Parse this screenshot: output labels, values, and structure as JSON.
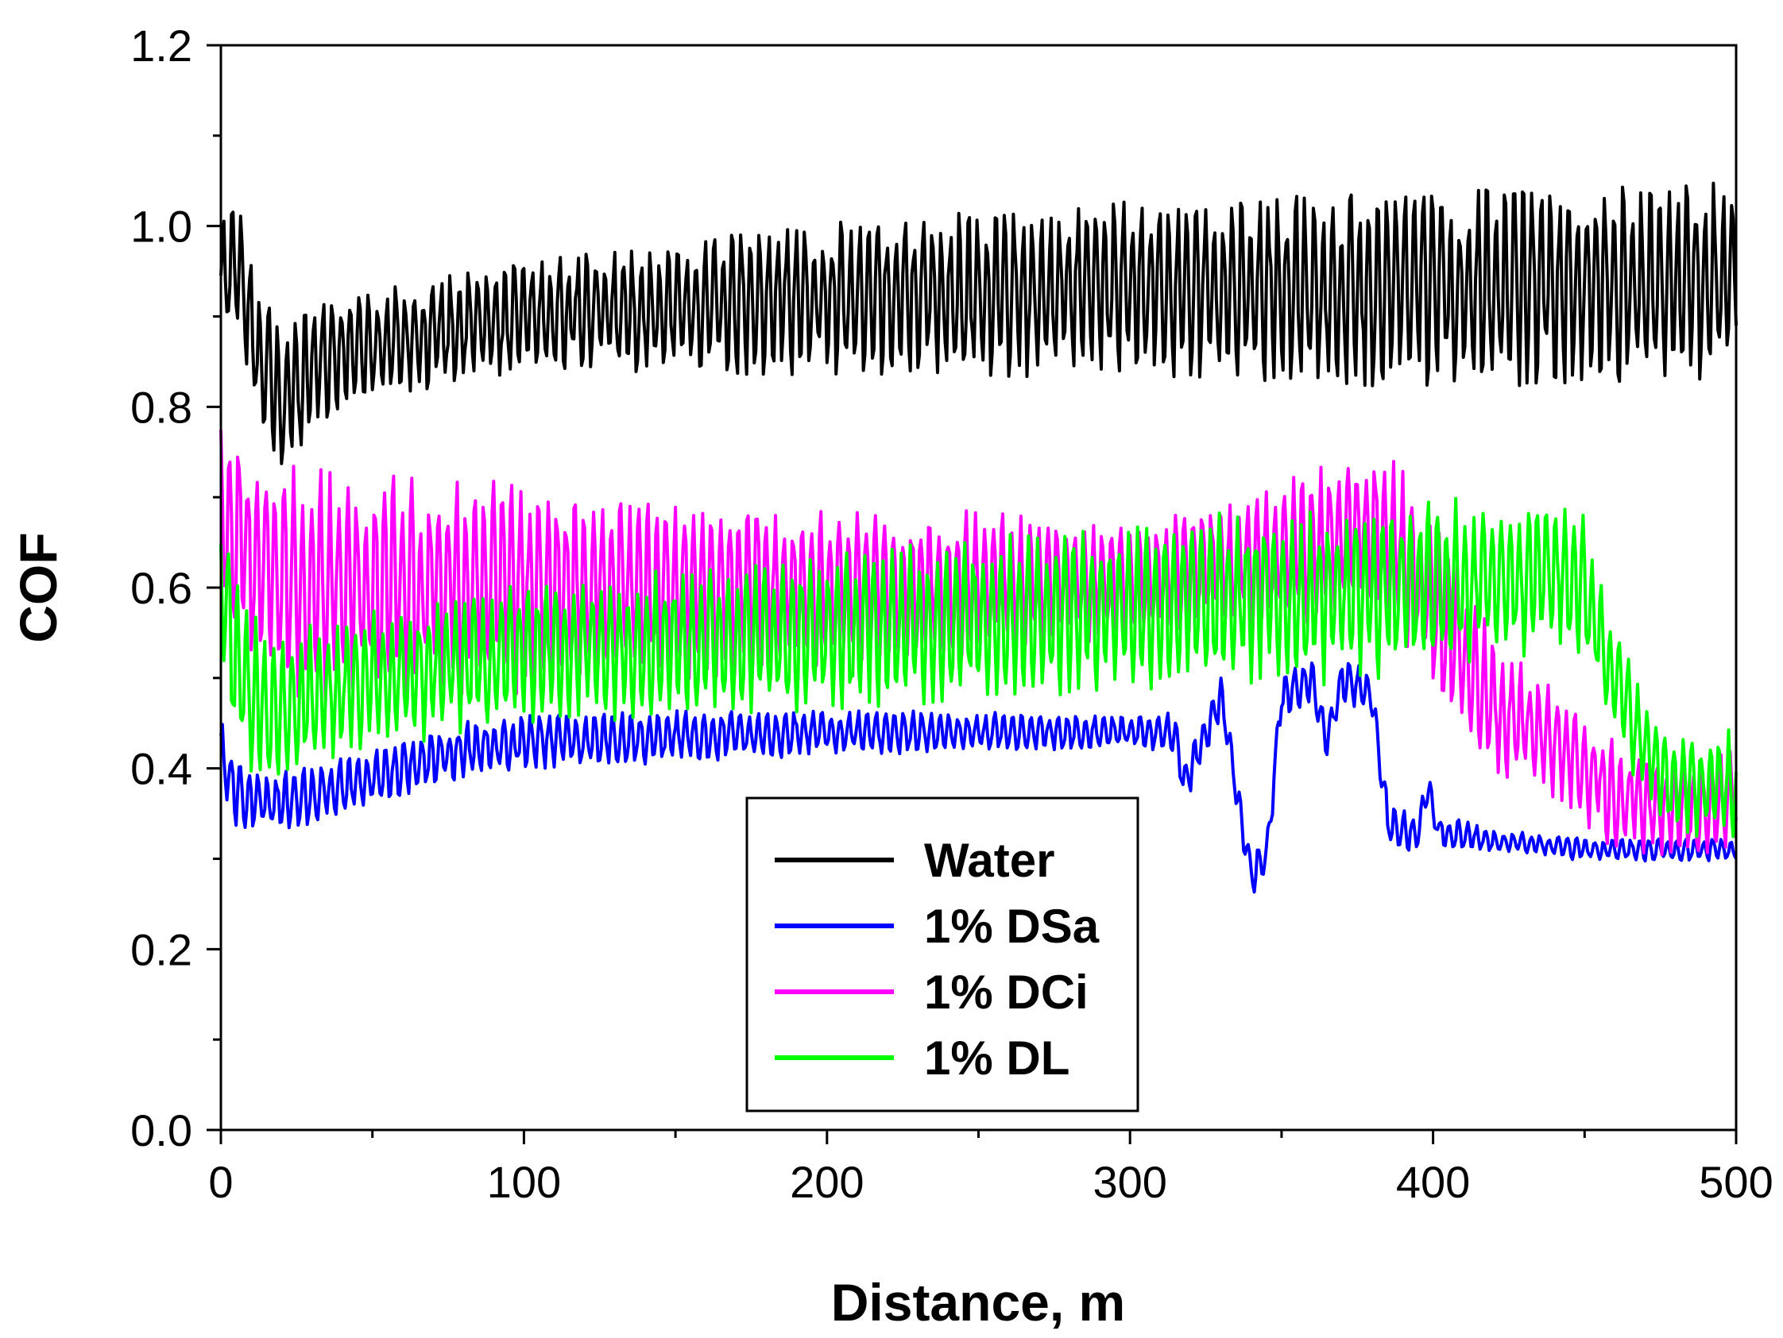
{
  "chart_data": {
    "type": "line",
    "title": "",
    "xlabel": "Distance, m",
    "ylabel": "COF",
    "xlim": [
      0,
      500
    ],
    "ylim": [
      0,
      1.2
    ],
    "xticks": [
      "0",
      "100",
      "200",
      "300",
      "400",
      "500"
    ],
    "xtick_values": [
      0,
      100,
      200,
      300,
      400,
      500
    ],
    "yticks": [
      "0.0",
      "0.2",
      "0.4",
      "0.6",
      "0.8",
      "1.0",
      "1.2"
    ],
    "ytick_values": [
      0,
      0.2,
      0.4,
      0.6,
      0.8,
      1.0,
      1.2
    ],
    "grid": false,
    "legend_position": "bottom-center",
    "oscillation_period_m": 3,
    "series": [
      {
        "name": "Water",
        "color": "#000000",
        "center": [
          [
            0,
            0.93
          ],
          [
            5,
            0.97
          ],
          [
            10,
            0.88
          ],
          [
            20,
            0.8
          ],
          [
            30,
            0.85
          ],
          [
            50,
            0.87
          ],
          [
            100,
            0.9
          ],
          [
            200,
            0.92
          ],
          [
            300,
            0.93
          ],
          [
            400,
            0.93
          ],
          [
            500,
            0.94
          ]
        ],
        "amplitude": [
          [
            0,
            0.06
          ],
          [
            10,
            0.07
          ],
          [
            50,
            0.05
          ],
          [
            100,
            0.05
          ],
          [
            200,
            0.07
          ],
          [
            300,
            0.08
          ],
          [
            400,
            0.09
          ],
          [
            500,
            0.09
          ]
        ]
      },
      {
        "name": "1% DSa",
        "color": "#0000ff",
        "center": [
          [
            0,
            0.42
          ],
          [
            5,
            0.37
          ],
          [
            20,
            0.36
          ],
          [
            50,
            0.39
          ],
          [
            80,
            0.42
          ],
          [
            100,
            0.43
          ],
          [
            200,
            0.44
          ],
          [
            315,
            0.44
          ],
          [
            318,
            0.38
          ],
          [
            325,
            0.44
          ],
          [
            330,
            0.48
          ],
          [
            335,
            0.38
          ],
          [
            340,
            0.28
          ],
          [
            345,
            0.3
          ],
          [
            350,
            0.48
          ],
          [
            360,
            0.5
          ],
          [
            365,
            0.43
          ],
          [
            370,
            0.5
          ],
          [
            380,
            0.48
          ],
          [
            385,
            0.34
          ],
          [
            390,
            0.33
          ],
          [
            395,
            0.33
          ],
          [
            398,
            0.38
          ],
          [
            402,
            0.33
          ],
          [
            420,
            0.32
          ],
          [
            450,
            0.31
          ],
          [
            500,
            0.31
          ]
        ],
        "amplitude": [
          [
            0,
            0.03
          ],
          [
            50,
            0.025
          ],
          [
            100,
            0.025
          ],
          [
            300,
            0.015
          ],
          [
            315,
            0.02
          ],
          [
            385,
            0.02
          ],
          [
            420,
            0.01
          ],
          [
            500,
            0.01
          ]
        ]
      },
      {
        "name": "1% DCi",
        "color": "#ff00ff",
        "center": [
          [
            0,
            0.69
          ],
          [
            10,
            0.62
          ],
          [
            30,
            0.6
          ],
          [
            100,
            0.6
          ],
          [
            200,
            0.6
          ],
          [
            300,
            0.61
          ],
          [
            340,
            0.63
          ],
          [
            380,
            0.66
          ],
          [
            390,
            0.64
          ],
          [
            400,
            0.58
          ],
          [
            420,
            0.47
          ],
          [
            440,
            0.43
          ],
          [
            460,
            0.37
          ],
          [
            480,
            0.35
          ],
          [
            500,
            0.37
          ]
        ],
        "amplitude": [
          [
            0,
            0.09
          ],
          [
            30,
            0.1
          ],
          [
            100,
            0.09
          ],
          [
            200,
            0.07
          ],
          [
            300,
            0.05
          ],
          [
            380,
            0.07
          ],
          [
            400,
            0.08
          ],
          [
            430,
            0.05
          ],
          [
            500,
            0.04
          ]
        ]
      },
      {
        "name": "1% DL",
        "color": "#00ff00",
        "center": [
          [
            0,
            0.6
          ],
          [
            5,
            0.52
          ],
          [
            15,
            0.46
          ],
          [
            30,
            0.48
          ],
          [
            100,
            0.53
          ],
          [
            200,
            0.55
          ],
          [
            300,
            0.58
          ],
          [
            400,
            0.6
          ],
          [
            440,
            0.62
          ],
          [
            450,
            0.6
          ],
          [
            460,
            0.5
          ],
          [
            470,
            0.42
          ],
          [
            480,
            0.38
          ],
          [
            500,
            0.38
          ]
        ],
        "amplitude": [
          [
            0,
            0.08
          ],
          [
            30,
            0.06
          ],
          [
            100,
            0.06
          ],
          [
            300,
            0.07
          ],
          [
            400,
            0.08
          ],
          [
            450,
            0.06
          ],
          [
            470,
            0.04
          ],
          [
            500,
            0.05
          ]
        ]
      }
    ]
  }
}
